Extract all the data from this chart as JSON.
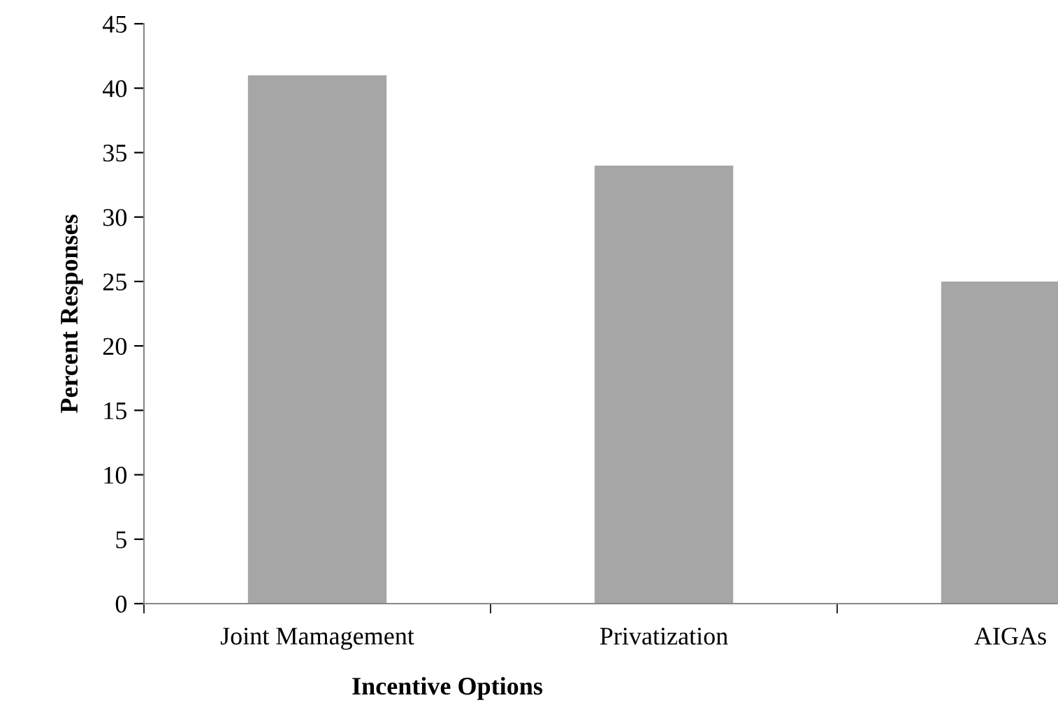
{
  "chart_data": {
    "type": "bar",
    "xlabel": "Incentive Options",
    "ylabel": "Percent Responses",
    "categories": [
      "Joint Mamagement",
      "Privatization",
      "AIGAs"
    ],
    "values": [
      41,
      34,
      25
    ],
    "color": "#a6a6a6",
    "ylim": [
      0,
      45
    ],
    "yticks": [
      0,
      5,
      10,
      15,
      20,
      25,
      30,
      35,
      40,
      45
    ],
    "grid": false,
    "legend": false
  }
}
